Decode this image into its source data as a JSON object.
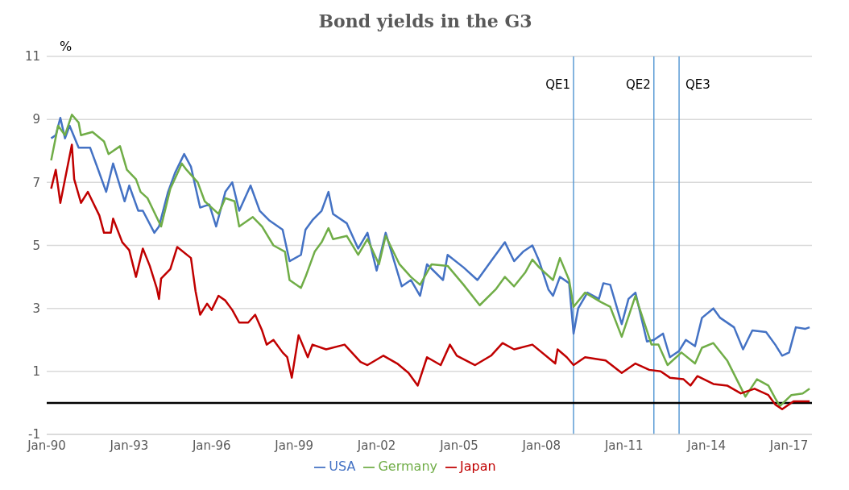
{
  "chart_data": {
    "type": "line",
    "title": "Bond yields in the G3",
    "ylabel": "%",
    "ylim": [
      -1,
      11
    ],
    "yticks": [
      -1,
      1,
      3,
      5,
      7,
      9,
      11
    ],
    "xlim": [
      "1990-01",
      "2017-11"
    ],
    "xticks": [
      {
        "value": "1990-01",
        "label": "Jan-90"
      },
      {
        "value": "1993-01",
        "label": "Jan-93"
      },
      {
        "value": "1996-01",
        "label": "Jan-96"
      },
      {
        "value": "1999-01",
        "label": "Jan-99"
      },
      {
        "value": "2002-01",
        "label": "Jan-02"
      },
      {
        "value": "2005-01",
        "label": "Jan-05"
      },
      {
        "value": "2008-01",
        "label": "Jan-08"
      },
      {
        "value": "2011-01",
        "label": "Jan-11"
      },
      {
        "value": "2014-01",
        "label": "Jan-14"
      },
      {
        "value": "2017-01",
        "label": "Jan-17"
      }
    ],
    "grid": "y",
    "legend": "bottom",
    "marker": "none",
    "line_style": "solid",
    "ref_lines": [
      {
        "axis": "x",
        "value": "2009-03",
        "label": "QE1",
        "color": "#5b9bd5"
      },
      {
        "axis": "x",
        "value": "2012-02",
        "label": "QE2",
        "color": "#5b9bd5"
      },
      {
        "axis": "x",
        "value": "2013-01",
        "label": "QE3",
        "color": "#5b9bd5"
      },
      {
        "axis": "y",
        "value": 0,
        "color": "#000000"
      }
    ],
    "series": [
      {
        "name": "USA",
        "color": "#4472c4",
        "x": [
          "1990-03",
          "1990-05",
          "1990-07",
          "1990-09",
          "1990-11",
          "1991-03",
          "1991-08",
          "1991-11",
          "1992-03",
          "1992-06",
          "1992-11",
          "1993-01",
          "1993-05",
          "1993-07",
          "1993-12",
          "1994-02",
          "1994-06",
          "1994-09",
          "1995-01",
          "1995-04",
          "1995-08",
          "1995-12",
          "1996-03",
          "1996-07",
          "1996-10",
          "1997-01",
          "1997-06",
          "1997-10",
          "1998-02",
          "1998-08",
          "1998-11",
          "1999-04",
          "1999-06",
          "1999-09",
          "2000-01",
          "2000-04",
          "2000-06",
          "2000-12",
          "2001-05",
          "2001-09",
          "2002-01",
          "2002-05",
          "2002-12",
          "2003-04",
          "2003-08",
          "2003-11",
          "2004-06",
          "2004-08",
          "2005-03",
          "2005-09",
          "2006-03",
          "2006-09",
          "2007-01",
          "2007-05",
          "2007-09",
          "2007-12",
          "2008-04",
          "2008-06",
          "2008-09",
          "2009-01",
          "2009-03",
          "2009-05",
          "2009-09",
          "2010-02",
          "2010-04",
          "2010-07",
          "2010-12",
          "2011-03",
          "2011-06",
          "2011-11",
          "2012-02",
          "2012-06",
          "2012-09",
          "2013-01",
          "2013-04",
          "2013-08",
          "2013-11",
          "2014-04",
          "2014-07",
          "2015-01",
          "2015-05",
          "2015-09",
          "2016-03",
          "2016-07",
          "2016-10",
          "2017-01",
          "2017-04",
          "2017-08",
          "2017-10"
        ],
        "values": [
          8.4,
          8.5,
          9.05,
          8.4,
          8.8,
          8.1,
          8.1,
          7.5,
          6.7,
          7.6,
          6.4,
          6.9,
          6.1,
          6.1,
          5.4,
          5.6,
          6.7,
          7.3,
          7.9,
          7.5,
          6.2,
          6.3,
          5.6,
          6.7,
          7.0,
          6.1,
          6.9,
          6.1,
          5.8,
          5.5,
          4.5,
          4.7,
          5.5,
          5.8,
          6.1,
          6.7,
          6.0,
          5.7,
          4.9,
          5.4,
          4.2,
          5.4,
          3.7,
          3.9,
          3.4,
          4.4,
          3.9,
          4.7,
          4.3,
          3.9,
          4.5,
          5.1,
          4.5,
          4.8,
          5.0,
          4.5,
          3.6,
          3.4,
          4.0,
          3.8,
          2.2,
          3.0,
          3.5,
          3.3,
          3.8,
          3.75,
          2.5,
          3.3,
          3.5,
          1.95,
          2.0,
          2.2,
          1.45,
          1.65,
          2.0,
          1.8,
          2.7,
          3.0,
          2.7,
          2.4,
          1.7,
          2.3,
          2.25,
          1.85,
          1.5,
          1.6,
          2.4,
          2.35,
          2.4
        ]
      },
      {
        "name": "Germany",
        "color": "#70ad47",
        "x": [
          "1990-03",
          "1990-06",
          "1990-09",
          "1990-12",
          "1991-03",
          "1991-04",
          "1991-09",
          "1992-02",
          "1992-04",
          "1992-09",
          "1992-12",
          "1993-04",
          "1993-06",
          "1993-09",
          "1994-03",
          "1994-07",
          "1994-12",
          "1995-02",
          "1995-07",
          "1995-10",
          "1996-04",
          "1996-07",
          "1996-11",
          "1997-01",
          "1997-07",
          "1997-11",
          "1998-04",
          "1998-09",
          "1998-11",
          "1999-04",
          "1999-06",
          "1999-10",
          "2000-01",
          "2000-04",
          "2000-06",
          "2000-12",
          "2001-05",
          "2001-09",
          "2002-02",
          "2002-05",
          "2002-11",
          "2003-04",
          "2003-08",
          "2004-01",
          "2004-08",
          "2005-03",
          "2005-10",
          "2006-05",
          "2006-09",
          "2007-01",
          "2007-06",
          "2007-09",
          "2007-12",
          "2008-06",
          "2008-09",
          "2009-01",
          "2009-03",
          "2009-08",
          "2010-03",
          "2010-07",
          "2010-12",
          "2011-06",
          "2012-01",
          "2012-04",
          "2012-08",
          "2013-02",
          "2013-08",
          "2013-11",
          "2014-04",
          "2014-10",
          "2015-06",
          "2015-11",
          "2016-04",
          "2016-07",
          "2016-09",
          "2017-02",
          "2017-07",
          "2017-10"
        ],
        "values": [
          7.7,
          8.8,
          8.5,
          9.15,
          8.9,
          8.5,
          8.6,
          8.3,
          7.9,
          8.15,
          7.4,
          7.1,
          6.7,
          6.5,
          5.6,
          6.8,
          7.6,
          7.4,
          7.0,
          6.4,
          6.0,
          6.5,
          6.4,
          5.6,
          5.9,
          5.6,
          5.0,
          4.8,
          3.9,
          3.65,
          4.0,
          4.8,
          5.1,
          5.55,
          5.2,
          5.3,
          4.7,
          5.2,
          4.4,
          5.3,
          4.4,
          4.0,
          3.75,
          4.4,
          4.35,
          3.75,
          3.1,
          3.6,
          4.0,
          3.7,
          4.15,
          4.55,
          4.3,
          3.9,
          4.6,
          3.9,
          3.05,
          3.5,
          3.2,
          3.05,
          2.1,
          3.4,
          1.85,
          1.85,
          1.2,
          1.6,
          1.25,
          1.75,
          1.9,
          1.35,
          0.2,
          0.75,
          0.55,
          0.15,
          -0.1,
          0.25,
          0.3,
          0.45
        ]
      },
      {
        "name": "Japan",
        "color": "#c00000",
        "x": [
          "1990-03",
          "1990-05",
          "1990-07",
          "1990-12",
          "1991-01",
          "1991-04",
          "1991-07",
          "1991-12",
          "1992-02",
          "1992-05",
          "1992-06",
          "1992-10",
          "1993-01",
          "1993-04",
          "1993-07",
          "1993-10",
          "1994-01",
          "1994-02",
          "1994-03",
          "1994-07",
          "1994-10",
          "1995-04",
          "1995-06",
          "1995-08",
          "1995-11",
          "1996-01",
          "1996-04",
          "1996-07",
          "1996-10",
          "1997-01",
          "1997-05",
          "1997-08",
          "1997-11",
          "1998-01",
          "1998-04",
          "1998-08",
          "1998-10",
          "1998-12",
          "1999-03",
          "1999-07",
          "1999-09",
          "2000-03",
          "2000-11",
          "2001-06",
          "2001-09",
          "2002-04",
          "2002-10",
          "2003-03",
          "2003-07",
          "2003-11",
          "2004-05",
          "2004-09",
          "2004-12",
          "2005-08",
          "2006-03",
          "2006-08",
          "2007-01",
          "2007-09",
          "2008-07",
          "2008-08",
          "2008-12",
          "2009-03",
          "2009-08",
          "2010-05",
          "2010-12",
          "2011-06",
          "2011-12",
          "2012-05",
          "2012-09",
          "2013-03",
          "2013-06",
          "2013-09",
          "2014-04",
          "2014-10",
          "2015-04",
          "2015-10",
          "2016-04",
          "2016-07",
          "2016-10",
          "2017-03",
          "2017-10"
        ],
        "values": [
          6.8,
          7.4,
          6.35,
          8.2,
          7.1,
          6.35,
          6.7,
          5.95,
          5.4,
          5.4,
          5.85,
          5.1,
          4.85,
          4.0,
          4.9,
          4.35,
          3.65,
          3.3,
          3.95,
          4.25,
          4.95,
          4.6,
          3.55,
          2.8,
          3.15,
          2.95,
          3.4,
          3.25,
          2.95,
          2.55,
          2.55,
          2.8,
          2.3,
          1.85,
          2.0,
          1.6,
          1.45,
          0.8,
          2.15,
          1.45,
          1.85,
          1.7,
          1.85,
          1.3,
          1.2,
          1.5,
          1.25,
          0.95,
          0.55,
          1.45,
          1.2,
          1.85,
          1.5,
          1.2,
          1.5,
          1.9,
          1.7,
          1.85,
          1.25,
          1.7,
          1.45,
          1.2,
          1.45,
          1.35,
          0.95,
          1.25,
          1.05,
          1.0,
          0.8,
          0.75,
          0.55,
          0.85,
          0.6,
          0.55,
          0.3,
          0.45,
          0.25,
          -0.05,
          -0.2,
          0.05,
          0.05
        ]
      }
    ]
  }
}
